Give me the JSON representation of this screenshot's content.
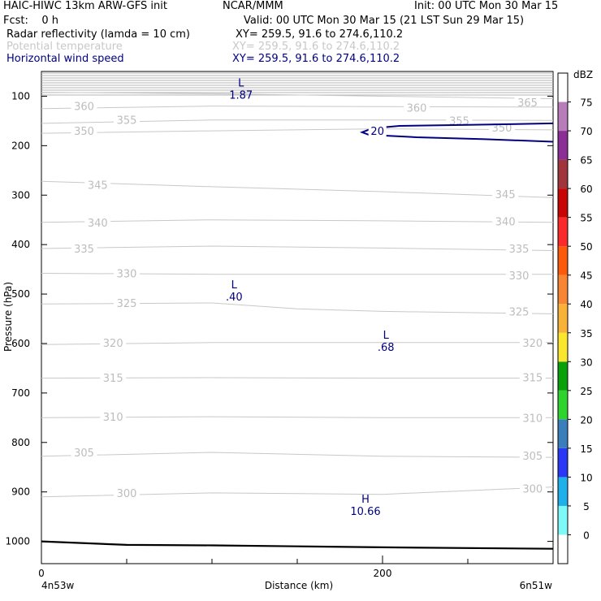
{
  "header": {
    "model": "HAIC-HIWC 13km ARW-GFS init",
    "center": "NCAR/MMM",
    "init": "Init: 00 UTC Mon 30 Mar 15",
    "fcst": "Fcst:    0 h",
    "valid": "Valid: 00 UTC Mon 30 Mar 15 (21 LST Sun 29 Mar 15)",
    "fields": [
      {
        "name": "Radar reflectivity (lamda = 10 cm)",
        "xy": "XY= 259.5, 91.6 to 274.6,110.2",
        "color": "#000000"
      },
      {
        "name": "Potential temperature",
        "xy": "XY= 259.5, 91.6 to 274.6,110.2",
        "color": "#c8c8c8"
      },
      {
        "name": "Horizontal wind speed",
        "xy": "XY= 259.5, 91.6 to 274.6,110.2",
        "color": "#000080"
      }
    ]
  },
  "chart_data": {
    "type": "cross-section",
    "ylabel": "Pressure (hPa)",
    "xlabel": "Distance (km)",
    "x_ticks": [
      "0",
      "200"
    ],
    "x_ticks_major": [
      0,
      200
    ],
    "x_minor": [
      50,
      100,
      150,
      250,
      300
    ],
    "xlim": [
      0,
      300
    ],
    "ylim": [
      1045,
      50
    ],
    "y_ticks": [
      100,
      200,
      300,
      400,
      500,
      600,
      700,
      800,
      900,
      1000
    ],
    "left_endpoint": "4n53w",
    "right_endpoint": "6n51w",
    "theta_contours": [
      {
        "label": "365",
        "pts": [
          [
            0,
            92
          ],
          [
            100,
            95
          ],
          [
            200,
            100
          ],
          [
            300,
            105
          ]
        ],
        "label_pos": [
          [
            285,
            112
          ]
        ]
      },
      {
        "label": "360",
        "pts": [
          [
            0,
            125
          ],
          [
            100,
            120
          ],
          [
            200,
            121
          ],
          [
            300,
            122
          ]
        ],
        "label_pos": [
          [
            25,
            120
          ],
          [
            220,
            123
          ]
        ]
      },
      {
        "label": "355",
        "pts": [
          [
            0,
            155
          ],
          [
            100,
            148
          ],
          [
            200,
            148
          ],
          [
            300,
            149
          ]
        ],
        "label_pos": [
          [
            50,
            148
          ],
          [
            245,
            149
          ]
        ]
      },
      {
        "label": "350",
        "pts": [
          [
            0,
            175
          ],
          [
            100,
            170
          ],
          [
            200,
            166
          ],
          [
            300,
            168
          ]
        ],
        "label_pos": [
          [
            25,
            170
          ],
          [
            270,
            163
          ]
        ]
      },
      {
        "label": "345",
        "pts": [
          [
            0,
            272
          ],
          [
            100,
            283
          ],
          [
            200,
            293
          ],
          [
            300,
            305
          ]
        ],
        "label_pos": [
          [
            33,
            279
          ],
          [
            272,
            298
          ]
        ]
      },
      {
        "label": "340",
        "pts": [
          [
            0,
            355
          ],
          [
            100,
            350
          ],
          [
            200,
            352
          ],
          [
            300,
            355
          ]
        ],
        "label_pos": [
          [
            33,
            355
          ],
          [
            272,
            353
          ]
        ]
      },
      {
        "label": "335",
        "pts": [
          [
            0,
            408
          ],
          [
            100,
            403
          ],
          [
            200,
            407
          ],
          [
            300,
            412
          ]
        ],
        "label_pos": [
          [
            25,
            408
          ],
          [
            280,
            408
          ]
        ]
      },
      {
        "label": "330",
        "pts": [
          [
            0,
            458
          ],
          [
            100,
            460
          ],
          [
            200,
            460
          ],
          [
            300,
            460
          ]
        ],
        "label_pos": [
          [
            50,
            458
          ],
          [
            280,
            462
          ]
        ]
      },
      {
        "label": "325",
        "pts": [
          [
            0,
            520
          ],
          [
            100,
            518
          ],
          [
            150,
            530
          ],
          [
            200,
            535
          ],
          [
            300,
            540
          ]
        ],
        "label_pos": [
          [
            50,
            518
          ],
          [
            280,
            535
          ]
        ]
      },
      {
        "label": "320",
        "pts": [
          [
            0,
            602
          ],
          [
            100,
            598
          ],
          [
            200,
            598
          ],
          [
            300,
            598
          ]
        ],
        "label_pos": [
          [
            42,
            598
          ],
          [
            288,
            598
          ]
        ]
      },
      {
        "label": "315",
        "pts": [
          [
            0,
            670
          ],
          [
            100,
            669
          ],
          [
            200,
            670
          ],
          [
            300,
            670
          ]
        ],
        "label_pos": [
          [
            42,
            669
          ],
          [
            288,
            668
          ]
        ]
      },
      {
        "label": "310",
        "pts": [
          [
            0,
            750
          ],
          [
            100,
            748
          ],
          [
            200,
            750
          ],
          [
            300,
            750
          ]
        ],
        "label_pos": [
          [
            42,
            748
          ],
          [
            288,
            750
          ]
        ]
      },
      {
        "label": "305",
        "pts": [
          [
            0,
            828
          ],
          [
            100,
            820
          ],
          [
            200,
            828
          ],
          [
            300,
            830
          ]
        ],
        "label_pos": [
          [
            25,
            820
          ],
          [
            288,
            827
          ]
        ]
      },
      {
        "label": "300",
        "pts": [
          [
            0,
            910
          ],
          [
            100,
            902
          ],
          [
            200,
            905
          ],
          [
            300,
            890
          ]
        ],
        "label_pos": [
          [
            50,
            902
          ],
          [
            288,
            893
          ]
        ]
      }
    ],
    "wind_contours": [
      {
        "label": "20",
        "pts": [
          [
            300,
            155
          ],
          [
            250,
            158
          ],
          [
            210,
            160
          ],
          [
            194,
            165
          ],
          [
            188,
            173
          ],
          [
            192,
            178
          ],
          [
            220,
            183
          ],
          [
            260,
            187
          ],
          [
            300,
            192
          ]
        ],
        "label_pos": [
          [
            197,
            170
          ]
        ]
      }
    ],
    "extrema": [
      {
        "type": "L",
        "value": "1.87",
        "x": 117,
        "p": 80
      },
      {
        "type": "L",
        "value": ".40",
        "x": 113,
        "p": 488
      },
      {
        "type": "L",
        "value": ".68",
        "x": 202,
        "p": 590
      },
      {
        "type": "H",
        "value": "10.66",
        "x": 190,
        "p": 922
      }
    ],
    "terrain": [
      [
        0,
        1000
      ],
      [
        50,
        1007
      ],
      [
        100,
        1008
      ],
      [
        150,
        1010
      ],
      [
        200,
        1012
      ],
      [
        300,
        1015
      ]
    ]
  },
  "colorbar": {
    "unit": "dBZ",
    "levels": [
      0,
      5,
      10,
      15,
      20,
      25,
      30,
      35,
      40,
      45,
      50,
      55,
      60,
      65,
      70,
      75
    ],
    "colors": [
      "#ffffff",
      "#7ff9f7",
      "#1fb0ec",
      "#2a37f4",
      "#3b7ebc",
      "#2ed32e",
      "#0aa00a",
      "#fae62e",
      "#f8b23a",
      "#f78533",
      "#fb5a0a",
      "#fb2a2a",
      "#c80505",
      "#a0363b",
      "#8b2f97",
      "#b97cba",
      "#ffffff"
    ]
  }
}
